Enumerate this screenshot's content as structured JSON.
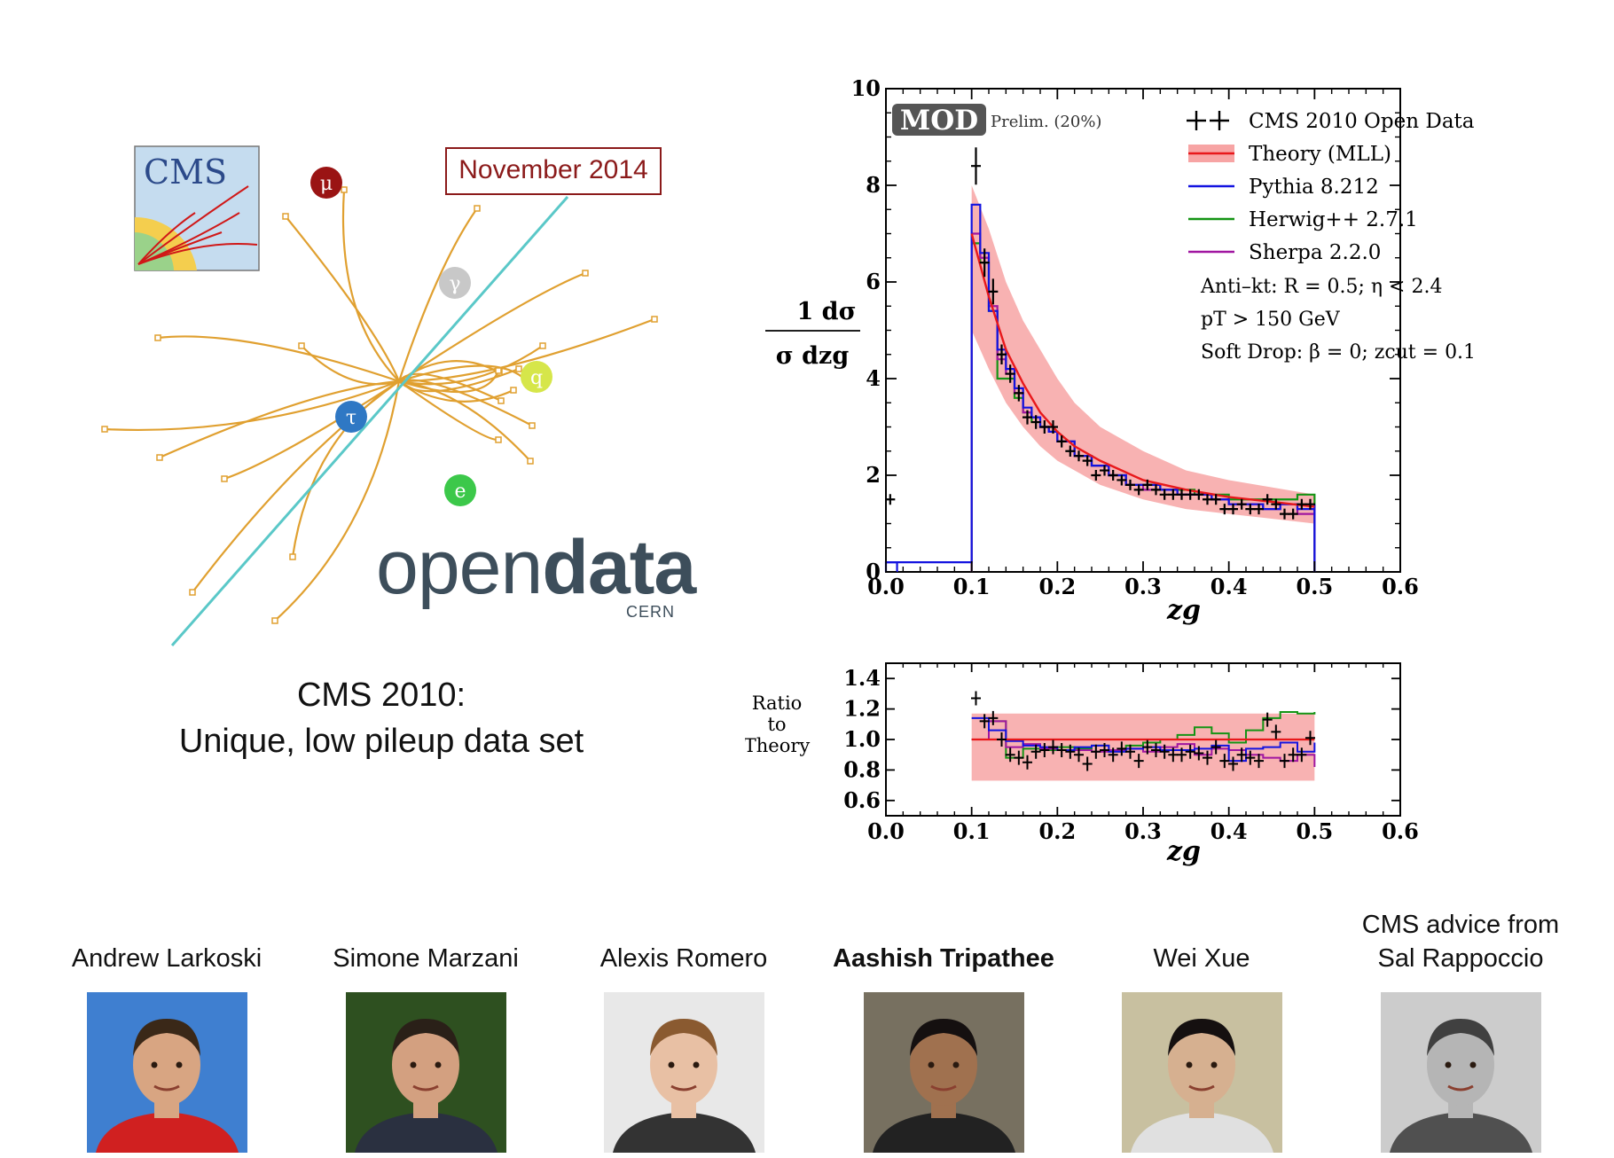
{
  "left_panel": {
    "event_tag": "November 2014",
    "cms_logo_text": "CMS",
    "particle_labels": [
      "μ",
      "γ",
      "q",
      "τ",
      "e"
    ],
    "opendata_light": "open",
    "opendata_bold": "data",
    "cern_label": "CERN",
    "caption_line1": "CMS 2010:",
    "caption_line2": "Unique, low pileup data set"
  },
  "main_plot": {
    "mod_logo": "MOD",
    "prelim": "Prelim. (20%)",
    "legend": [
      {
        "label": "CMS 2010 Open Data",
        "color": "#000000"
      },
      {
        "label": "Theory (MLL)",
        "color": "#e8181b"
      },
      {
        "label": "Pythia 8.212",
        "color": "#1313e0"
      },
      {
        "label": "Herwig++ 2.7.1",
        "color": "#149414"
      },
      {
        "label": "Sherpa 2.2.0",
        "color": "#a016a0"
      }
    ],
    "cuts": [
      "Anti–kt: R = 0.5; η < 2.4",
      "pT > 150 GeV",
      "Soft Drop: β = 0; zcut = 0.1"
    ],
    "ylabel_num": "1 dσ",
    "ylabel_den": "σ dzg",
    "xlabel": "zg",
    "xticks": [
      "0.0",
      "0.1",
      "0.2",
      "0.3",
      "0.4",
      "0.5",
      "0.6"
    ],
    "yticks": [
      "0",
      "2",
      "4",
      "6",
      "8",
      "10"
    ]
  },
  "ratio_plot": {
    "ylabel_lines": [
      "Ratio",
      "to",
      "Theory"
    ],
    "yticks": [
      "0.6",
      "0.8",
      "1.0",
      "1.2",
      "1.4"
    ],
    "xticks": [
      "0.0",
      "0.1",
      "0.2",
      "0.3",
      "0.4",
      "0.5",
      "0.6"
    ],
    "xlabel": "zg"
  },
  "chart_data": [
    {
      "type": "line",
      "xlabel": "zg",
      "ylabel": "1/σ dσ/dzg",
      "xlim": [
        0,
        0.6
      ],
      "ylim": [
        0,
        10
      ],
      "series": [
        {
          "name": "CMS 2010 Open Data",
          "x": [
            0.005,
            0.105,
            0.115,
            0.125,
            0.135,
            0.145,
            0.155,
            0.165,
            0.175,
            0.185,
            0.195,
            0.205,
            0.215,
            0.225,
            0.235,
            0.245,
            0.255,
            0.265,
            0.275,
            0.285,
            0.295,
            0.305,
            0.315,
            0.325,
            0.335,
            0.345,
            0.355,
            0.365,
            0.375,
            0.385,
            0.395,
            0.405,
            0.415,
            0.425,
            0.435,
            0.445,
            0.455,
            0.465,
            0.475,
            0.485,
            0.495
          ],
          "y": [
            1.5,
            8.4,
            6.4,
            5.8,
            4.5,
            4.1,
            3.7,
            3.2,
            3.1,
            3.0,
            3.0,
            2.7,
            2.5,
            2.4,
            2.3,
            2.0,
            2.1,
            2.0,
            1.9,
            1.8,
            1.7,
            1.8,
            1.7,
            1.6,
            1.6,
            1.6,
            1.6,
            1.6,
            1.5,
            1.5,
            1.3,
            1.3,
            1.4,
            1.3,
            1.3,
            1.5,
            1.4,
            1.2,
            1.2,
            1.4,
            1.4
          ]
        },
        {
          "name": "Theory (MLL)",
          "x": [
            0.1,
            0.12,
            0.14,
            0.16,
            0.18,
            0.2,
            0.22,
            0.25,
            0.3,
            0.35,
            0.4,
            0.45,
            0.5
          ],
          "y": [
            7.0,
            5.7,
            4.6,
            3.9,
            3.3,
            2.9,
            2.6,
            2.3,
            1.9,
            1.7,
            1.55,
            1.45,
            1.35
          ],
          "band_low": [
            5.0,
            4.2,
            3.5,
            3.0,
            2.6,
            2.3,
            2.1,
            1.8,
            1.5,
            1.3,
            1.2,
            1.1,
            1.0
          ],
          "band_high": [
            8.0,
            7.1,
            6.0,
            5.2,
            4.6,
            4.0,
            3.5,
            3.0,
            2.5,
            2.1,
            1.9,
            1.75,
            1.6
          ]
        },
        {
          "name": "Pythia 8.212",
          "x": [
            0.0,
            0.1,
            0.11,
            0.12,
            0.13,
            0.14,
            0.15,
            0.16,
            0.17,
            0.18,
            0.19,
            0.2,
            0.22,
            0.24,
            0.26,
            0.28,
            0.3,
            0.32,
            0.34,
            0.36,
            0.38,
            0.4,
            0.42,
            0.44,
            0.46,
            0.48,
            0.5
          ],
          "y": [
            0.2,
            7.6,
            6.6,
            5.4,
            4.6,
            4.2,
            3.8,
            3.4,
            3.2,
            3.0,
            2.9,
            2.7,
            2.4,
            2.2,
            2.0,
            1.8,
            1.8,
            1.7,
            1.6,
            1.6,
            1.5,
            1.4,
            1.4,
            1.3,
            1.4,
            1.3,
            1.4
          ]
        },
        {
          "name": "Herwig++ 2.7.1",
          "x": [
            0.1,
            0.11,
            0.12,
            0.13,
            0.14,
            0.15,
            0.16,
            0.17,
            0.18,
            0.19,
            0.2,
            0.22,
            0.24,
            0.26,
            0.28,
            0.3,
            0.32,
            0.34,
            0.36,
            0.38,
            0.4,
            0.42,
            0.44,
            0.46,
            0.48,
            0.5
          ],
          "y": [
            6.8,
            6.4,
            5.4,
            4.0,
            4.0,
            3.6,
            3.3,
            3.1,
            3.0,
            2.9,
            2.7,
            2.4,
            2.2,
            2.0,
            1.8,
            1.8,
            1.7,
            1.7,
            1.6,
            1.6,
            1.5,
            1.5,
            1.5,
            1.5,
            1.6,
            1.6
          ]
        },
        {
          "name": "Sherpa 2.2.0",
          "x": [
            0.1,
            0.11,
            0.12,
            0.13,
            0.14,
            0.15,
            0.16,
            0.17,
            0.18,
            0.19,
            0.2,
            0.22,
            0.24,
            0.26,
            0.28,
            0.3,
            0.32,
            0.34,
            0.36,
            0.38,
            0.4,
            0.42,
            0.44,
            0.46,
            0.48,
            0.5
          ],
          "y": [
            7.0,
            6.5,
            5.5,
            4.4,
            4.1,
            3.7,
            3.3,
            3.2,
            3.0,
            2.9,
            2.7,
            2.4,
            2.2,
            2.0,
            1.8,
            1.7,
            1.7,
            1.6,
            1.6,
            1.5,
            1.4,
            1.4,
            1.3,
            1.4,
            1.2,
            1.3
          ]
        }
      ]
    },
    {
      "type": "line",
      "xlabel": "zg",
      "ylabel": "Ratio to Theory",
      "xlim": [
        0,
        0.6
      ],
      "ylim": [
        0.5,
        1.5
      ],
      "band": {
        "x": [
          0.1,
          0.5
        ],
        "low": 0.73,
        "high": 1.17
      },
      "series": [
        {
          "name": "CMS 2010 Open Data",
          "x": [
            0.105,
            0.115,
            0.125,
            0.135,
            0.145,
            0.155,
            0.165,
            0.175,
            0.185,
            0.195,
            0.205,
            0.215,
            0.225,
            0.235,
            0.245,
            0.255,
            0.265,
            0.275,
            0.285,
            0.295,
            0.305,
            0.315,
            0.325,
            0.335,
            0.345,
            0.355,
            0.365,
            0.375,
            0.385,
            0.395,
            0.405,
            0.415,
            0.425,
            0.435,
            0.445,
            0.455,
            0.465,
            0.475,
            0.485,
            0.495
          ],
          "y": [
            1.27,
            1.12,
            1.14,
            1.0,
            0.9,
            0.88,
            0.85,
            0.92,
            0.93,
            0.95,
            0.93,
            0.92,
            0.9,
            0.84,
            0.92,
            0.93,
            0.9,
            0.94,
            0.92,
            0.86,
            0.95,
            0.93,
            0.92,
            0.9,
            0.9,
            0.92,
            0.91,
            0.88,
            0.95,
            0.86,
            0.84,
            0.9,
            0.88,
            0.86,
            1.13,
            1.05,
            0.86,
            0.9,
            0.9,
            1.01
          ]
        },
        {
          "name": "Theory (MLL)",
          "x": [
            0.1,
            0.5
          ],
          "y": [
            1.0,
            1.0
          ]
        },
        {
          "name": "Pythia 8.212",
          "x": [
            0.1,
            0.12,
            0.14,
            0.16,
            0.18,
            0.2,
            0.22,
            0.24,
            0.26,
            0.28,
            0.3,
            0.32,
            0.34,
            0.36,
            0.38,
            0.4,
            0.42,
            0.44,
            0.46,
            0.48,
            0.5
          ],
          "y": [
            1.14,
            1.06,
            0.99,
            0.96,
            0.95,
            0.93,
            0.95,
            0.96,
            0.92,
            0.94,
            0.95,
            0.93,
            0.93,
            0.94,
            0.96,
            0.86,
            0.94,
            0.95,
            0.98,
            0.92,
            0.98
          ]
        },
        {
          "name": "Herwig++ 2.7.1",
          "x": [
            0.1,
            0.12,
            0.14,
            0.16,
            0.18,
            0.2,
            0.22,
            0.24,
            0.26,
            0.28,
            0.3,
            0.32,
            0.34,
            0.36,
            0.38,
            0.4,
            0.42,
            0.44,
            0.46,
            0.48,
            0.5
          ],
          "y": [
            1.0,
            1.12,
            0.88,
            0.94,
            0.93,
            0.95,
            0.94,
            0.96,
            0.92,
            0.96,
            0.98,
            1.0,
            1.03,
            1.08,
            1.04,
            0.98,
            1.06,
            1.14,
            1.18,
            1.17,
            1.18
          ]
        },
        {
          "name": "Sherpa 2.2.0",
          "x": [
            0.1,
            0.12,
            0.14,
            0.16,
            0.18,
            0.2,
            0.22,
            0.24,
            0.26,
            0.28,
            0.3,
            0.32,
            0.34,
            0.36,
            0.38,
            0.4,
            0.42,
            0.44,
            0.46,
            0.48,
            0.5
          ],
          "y": [
            1.0,
            1.12,
            0.95,
            0.97,
            0.94,
            0.93,
            0.93,
            0.92,
            0.93,
            0.94,
            0.92,
            0.95,
            0.97,
            0.9,
            0.94,
            0.93,
            0.9,
            0.88,
            0.86,
            0.9,
            0.82
          ]
        }
      ]
    }
  ],
  "people": [
    {
      "name": "Andrew Larkoski",
      "bold": false,
      "bg": "#3f7fd0",
      "shirt": "#d02020",
      "skin": "#d8a582",
      "hair": "#3a2818"
    },
    {
      "name": "Simone Marzani",
      "bold": false,
      "bg": "#2e5020",
      "shirt": "#2a3040",
      "skin": "#d3a080",
      "hair": "#2a2018"
    },
    {
      "name": "Alexis Romero",
      "bold": false,
      "bg": "#e8e8e8",
      "shirt": "#333333",
      "skin": "#e8c0a4",
      "hair": "#8a5a30"
    },
    {
      "name": "Aashish Tripathee",
      "bold": true,
      "bg": "#777060",
      "shirt": "#222222",
      "skin": "#a0714f",
      "hair": "#151010"
    },
    {
      "name": "Wei Xue",
      "bold": false,
      "bg": "#c8c0a0",
      "shirt": "#e0e0e0",
      "skin": "#d6b090",
      "hair": "#151010"
    },
    {
      "name": "CMS advice from",
      "name2": "Sal Rappoccio",
      "bold": false,
      "bg": "#cccccc",
      "shirt": "#505050",
      "skin": "#b5b5b5",
      "hair": "#404040"
    }
  ]
}
